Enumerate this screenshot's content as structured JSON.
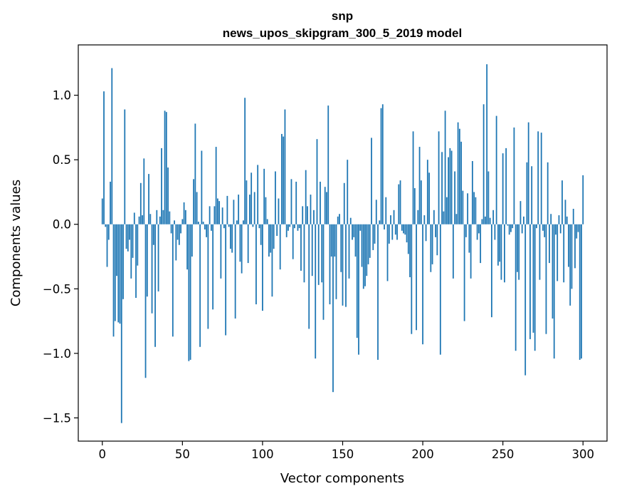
{
  "chart_data": {
    "type": "bar",
    "title_line1": "snp",
    "title_line2": "news_upos_skipgram_300_5_2019 model",
    "xlabel": "Vector components",
    "ylabel": "Components values",
    "xlim": [
      -15,
      315
    ],
    "ylim": [
      -1.68,
      1.39
    ],
    "xticks": [
      0,
      50,
      100,
      150,
      200,
      250,
      300
    ],
    "xtick_labels": [
      "0",
      "50",
      "100",
      "150",
      "200",
      "250",
      "300"
    ],
    "yticks": [
      -1.5,
      -1.0,
      -0.5,
      0.0,
      0.5,
      1.0
    ],
    "ytick_labels": [
      "−1.5",
      "−1.0",
      "−0.5",
      "0.0",
      "0.5",
      "1.0"
    ],
    "bar_color": "#1f77b4",
    "values": [
      0.2,
      1.03,
      -0.02,
      -0.33,
      -0.12,
      0.33,
      1.21,
      -0.87,
      -0.75,
      -0.4,
      -0.76,
      -0.77,
      -1.54,
      -0.58,
      0.89,
      -0.19,
      -0.21,
      -0.12,
      -0.42,
      -0.26,
      0.09,
      -0.57,
      -0.32,
      0.06,
      0.32,
      0.07,
      0.51,
      -1.19,
      -0.56,
      0.39,
      0.08,
      -0.69,
      -0.16,
      -0.95,
      0.11,
      -0.52,
      0.06,
      0.59,
      0.11,
      0.88,
      0.87,
      0.44,
      0.1,
      -0.07,
      -0.87,
      0.03,
      -0.28,
      -0.12,
      -0.16,
      -0.07,
      0.04,
      0.17,
      0.11,
      -0.35,
      -1.06,
      -1.05,
      -0.25,
      0.35,
      0.78,
      0.25,
      0.02,
      -0.95,
      0.57,
      0.02,
      -0.04,
      -0.1,
      -0.81,
      0.14,
      -0.05,
      -0.66,
      0.14,
      0.6,
      0.2,
      0.18,
      -0.42,
      0.13,
      -0.03,
      -0.86,
      0.22,
      -0.02,
      -0.19,
      -0.22,
      0.19,
      -0.73,
      0.03,
      0.23,
      -0.29,
      -0.38,
      0.03,
      0.98,
      0.34,
      -0.3,
      0.23,
      0.4,
      -0.02,
      0.25,
      -0.62,
      0.46,
      -0.03,
      -0.16,
      -0.67,
      0.43,
      0.21,
      0.04,
      -0.25,
      -0.22,
      -0.56,
      -0.19,
      0.41,
      -0.09,
      0.2,
      -0.35,
      0.7,
      0.68,
      0.89,
      -0.1,
      -0.05,
      -0.02,
      0.35,
      -0.27,
      -0.03,
      0.33,
      -0.05,
      -0.03,
      -0.36,
      0.14,
      -0.45,
      0.42,
      0.14,
      -0.81,
      0.23,
      -0.4,
      0.11,
      -1.04,
      0.66,
      -0.47,
      0.33,
      -0.45,
      -0.74,
      0.29,
      0.25,
      0.92,
      -0.62,
      -0.25,
      -1.3,
      -0.25,
      -0.58,
      0.06,
      0.08,
      -0.37,
      -0.63,
      0.32,
      -0.64,
      0.5,
      -0.42,
      0.05,
      -0.12,
      -0.1,
      -0.25,
      -0.88,
      -1.01,
      -0.05,
      -0.33,
      -0.5,
      -0.48,
      -0.4,
      -0.31,
      -0.26,
      0.67,
      -0.2,
      -0.15,
      0.19,
      -1.05,
      0.03,
      0.9,
      0.93,
      -0.04,
      0.21,
      -0.44,
      -0.15,
      0.07,
      -0.12,
      0.11,
      -0.08,
      -0.12,
      0.31,
      0.34,
      -0.05,
      -0.07,
      -0.08,
      -0.14,
      -0.23,
      -0.41,
      -0.85,
      0.72,
      0.28,
      -0.82,
      0.11,
      0.6,
      0.34,
      -0.93,
      0.07,
      -0.13,
      0.5,
      0.4,
      -0.37,
      -0.31,
      0.11,
      -0.1,
      -0.24,
      0.72,
      -1.01,
      0.56,
      0.1,
      0.88,
      0.21,
      0.52,
      0.59,
      0.57,
      -0.42,
      0.41,
      0.08,
      0.79,
      0.74,
      0.64,
      0.26,
      -0.75,
      -0.1,
      0.24,
      -0.22,
      -0.42,
      0.49,
      0.25,
      0.21,
      -0.12,
      -0.07,
      -0.3,
      0.04,
      0.93,
      0.06,
      1.24,
      0.41,
      0.05,
      -0.72,
      0.11,
      -0.12,
      0.84,
      -0.32,
      -0.29,
      -0.43,
      0.55,
      -0.45,
      0.59,
      -0.01,
      -0.08,
      -0.06,
      -0.03,
      0.75,
      -0.98,
      -0.37,
      -0.43,
      0.18,
      -0.07,
      0.06,
      -1.17,
      0.48,
      0.79,
      -0.89,
      0.45,
      -0.84,
      -0.98,
      -0.03,
      0.72,
      -0.43,
      0.71,
      -0.05,
      -0.1,
      -0.85,
      0.48,
      -0.3,
      0.08,
      -0.73,
      -1.04,
      -0.08,
      -0.44,
      0.07,
      -0.07,
      0.34,
      -0.45,
      0.19,
      0.06,
      -0.33,
      -0.63,
      -0.5,
      0.12,
      -0.34,
      -0.11,
      -0.06,
      -1.05,
      -1.04,
      0.38
    ]
  }
}
